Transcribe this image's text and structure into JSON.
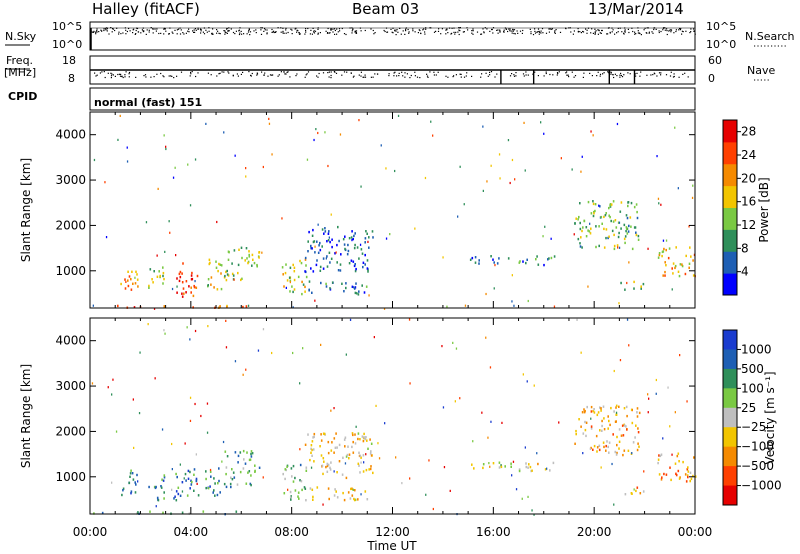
{
  "header": {
    "station": "Halley (fitACF)",
    "beam": "Beam 03",
    "date": "13/Mar/2014"
  },
  "noise_panel": {
    "left_label": "N.Sky",
    "right_label": "N.Search",
    "ticks_left": [
      "10^5",
      "10^0"
    ],
    "ticks_right": [
      "10^5",
      "10^0"
    ]
  },
  "freq_panel": {
    "left_label_1": "Freq.",
    "left_label_2": "[MHz]",
    "right_label": "Nave",
    "ticks_left": [
      "18",
      "8"
    ],
    "ticks_right": [
      "60",
      "0"
    ]
  },
  "cpid": {
    "label": "CPID",
    "value": "normal (fast) 151"
  },
  "chart_data": [
    {
      "type": "heatmap",
      "name": "power",
      "ylabel": "Slant Range [km]",
      "xlabel": "Time UT",
      "ylim": [
        180,
        4500
      ],
      "xlim": [
        0,
        24
      ],
      "yticks": [
        "1000",
        "2000",
        "3000",
        "4000"
      ],
      "xticks": [
        "00:00",
        "04:00",
        "08:00",
        "12:00",
        "16:00",
        "20:00",
        "00:00"
      ],
      "colorbar": {
        "label": "Power [dB]",
        "ticks": [
          "4",
          "8",
          "12",
          "16",
          "20",
          "24",
          "28"
        ],
        "range": [
          0,
          30
        ],
        "colors": [
          "#0000ff",
          "#1e5fb4",
          "#2f8f5a",
          "#7ac943",
          "#f2c500",
          "#f58a00",
          "#ff4000",
          "#e60000"
        ]
      },
      "echo_regions": [
        {
          "t": [
            0.0,
            6.2
          ],
          "r": [
            200,
            260
          ],
          "level": 0.75
        },
        {
          "t": [
            1.2,
            1.9
          ],
          "r": [
            550,
            1200
          ],
          "level": 0.7
        },
        {
          "t": [
            2.3,
            3.0
          ],
          "r": [
            500,
            1100
          ],
          "level": 0.45
        },
        {
          "t": [
            3.3,
            4.3
          ],
          "r": [
            450,
            1200
          ],
          "level": 0.85
        },
        {
          "t": [
            4.5,
            5.2
          ],
          "r": [
            600,
            1300
          ],
          "level": 0.5
        },
        {
          "t": [
            5.3,
            6.7
          ],
          "r": [
            800,
            1600
          ],
          "level": 0.45
        },
        {
          "t": [
            7.6,
            8.6
          ],
          "r": [
            500,
            1300
          ],
          "level": 0.5
        },
        {
          "t": [
            8.6,
            11.0
          ],
          "r": [
            500,
            800
          ],
          "level": 0.25
        },
        {
          "t": [
            8.5,
            11.2
          ],
          "r": [
            1000,
            2000
          ],
          "level": 0.2
        },
        {
          "t": [
            15.0,
            18.5
          ],
          "r": [
            1150,
            1350
          ],
          "level": 0.25
        },
        {
          "t": [
            19.2,
            21.8
          ],
          "r": [
            1500,
            2600
          ],
          "level": 0.4
        },
        {
          "t": [
            21.0,
            22.0
          ],
          "r": [
            600,
            800
          ],
          "level": 0.45
        },
        {
          "t": [
            22.5,
            24.0
          ],
          "r": [
            900,
            1550
          ],
          "level": 0.6
        }
      ]
    },
    {
      "type": "heatmap",
      "name": "velocity",
      "ylabel": "Slant Range [km]",
      "xlabel": "Time UT",
      "ylim": [
        180,
        4500
      ],
      "xlim": [
        0,
        24
      ],
      "yticks": [
        "1000",
        "2000",
        "3000",
        "4000"
      ],
      "xticks": [
        "00:00",
        "04:00",
        "08:00",
        "12:00",
        "16:00",
        "20:00",
        "00:00"
      ],
      "colorbar": {
        "label": "Velocity [m s⁻¹]",
        "ticks": [
          "1000",
          "500",
          "100",
          "25",
          "−25",
          "−100",
          "−500",
          "−1000"
        ],
        "colors": [
          "#1a3ccf",
          "#1e5fb4",
          "#2f8f5a",
          "#7ac943",
          "#bfbfbf",
          "#f2c500",
          "#f58a00",
          "#ff4000",
          "#e60000"
        ]
      },
      "echo_regions": [
        {
          "t": [
            0.0,
            6.2
          ],
          "r": [
            200,
            260
          ],
          "level": 0.35
        },
        {
          "t": [
            1.2,
            1.9
          ],
          "r": [
            550,
            1200
          ],
          "level": 0.2
        },
        {
          "t": [
            2.3,
            3.0
          ],
          "r": [
            500,
            1100
          ],
          "level": 0.25
        },
        {
          "t": [
            3.3,
            4.3
          ],
          "r": [
            450,
            1200
          ],
          "level": 0.2
        },
        {
          "t": [
            4.5,
            5.2
          ],
          "r": [
            600,
            1300
          ],
          "level": 0.25
        },
        {
          "t": [
            5.3,
            6.7
          ],
          "r": [
            800,
            1600
          ],
          "level": 0.3
        },
        {
          "t": [
            7.6,
            8.6
          ],
          "r": [
            500,
            1300
          ],
          "level": 0.35
        },
        {
          "t": [
            8.6,
            11.0
          ],
          "r": [
            500,
            800
          ],
          "level": 0.6
        },
        {
          "t": [
            8.5,
            11.2
          ],
          "r": [
            1000,
            2000
          ],
          "level": 0.6
        },
        {
          "t": [
            15.0,
            18.5
          ],
          "r": [
            1150,
            1350
          ],
          "level": 0.5
        },
        {
          "t": [
            19.2,
            21.8
          ],
          "r": [
            1500,
            2600
          ],
          "level": 0.65
        },
        {
          "t": [
            21.0,
            22.0
          ],
          "r": [
            600,
            800
          ],
          "level": 0.65
        },
        {
          "t": [
            22.5,
            24.0
          ],
          "r": [
            900,
            1550
          ],
          "level": 0.7
        }
      ]
    }
  ]
}
